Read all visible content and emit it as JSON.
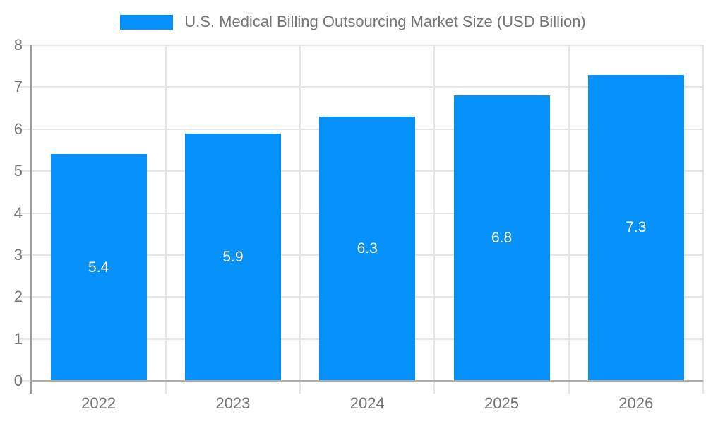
{
  "legend": {
    "label": "U.S. Medical Billing Outsourcing Market Size (USD Billion)"
  },
  "colors": {
    "bar": "#0691fa",
    "text_gray": "#757575",
    "grid": "#e6e6e6",
    "axis": "#9b9b9b",
    "baseline": "#aeaeae",
    "value_label": "#ffffff",
    "background": "#ffffff"
  },
  "chart_data": {
    "type": "bar",
    "title": "U.S. Medical Billing Outsourcing Market Size (USD Billion)",
    "categories": [
      "2022",
      "2023",
      "2024",
      "2025",
      "2026"
    ],
    "values": [
      5.4,
      5.9,
      6.3,
      6.8,
      7.3
    ],
    "series": [
      {
        "name": "U.S. Medical Billing Outsourcing Market Size (USD Billion)",
        "values": [
          5.4,
          5.9,
          6.3,
          6.8,
          7.3
        ]
      }
    ],
    "xlabel": "",
    "ylabel": "",
    "ylim": [
      0,
      8
    ],
    "ytick_step": 1,
    "yticks": [
      0,
      1,
      2,
      3,
      4,
      5,
      6,
      7,
      8
    ],
    "grid": true,
    "legend_position": "top",
    "value_label_position": "inside-center"
  }
}
